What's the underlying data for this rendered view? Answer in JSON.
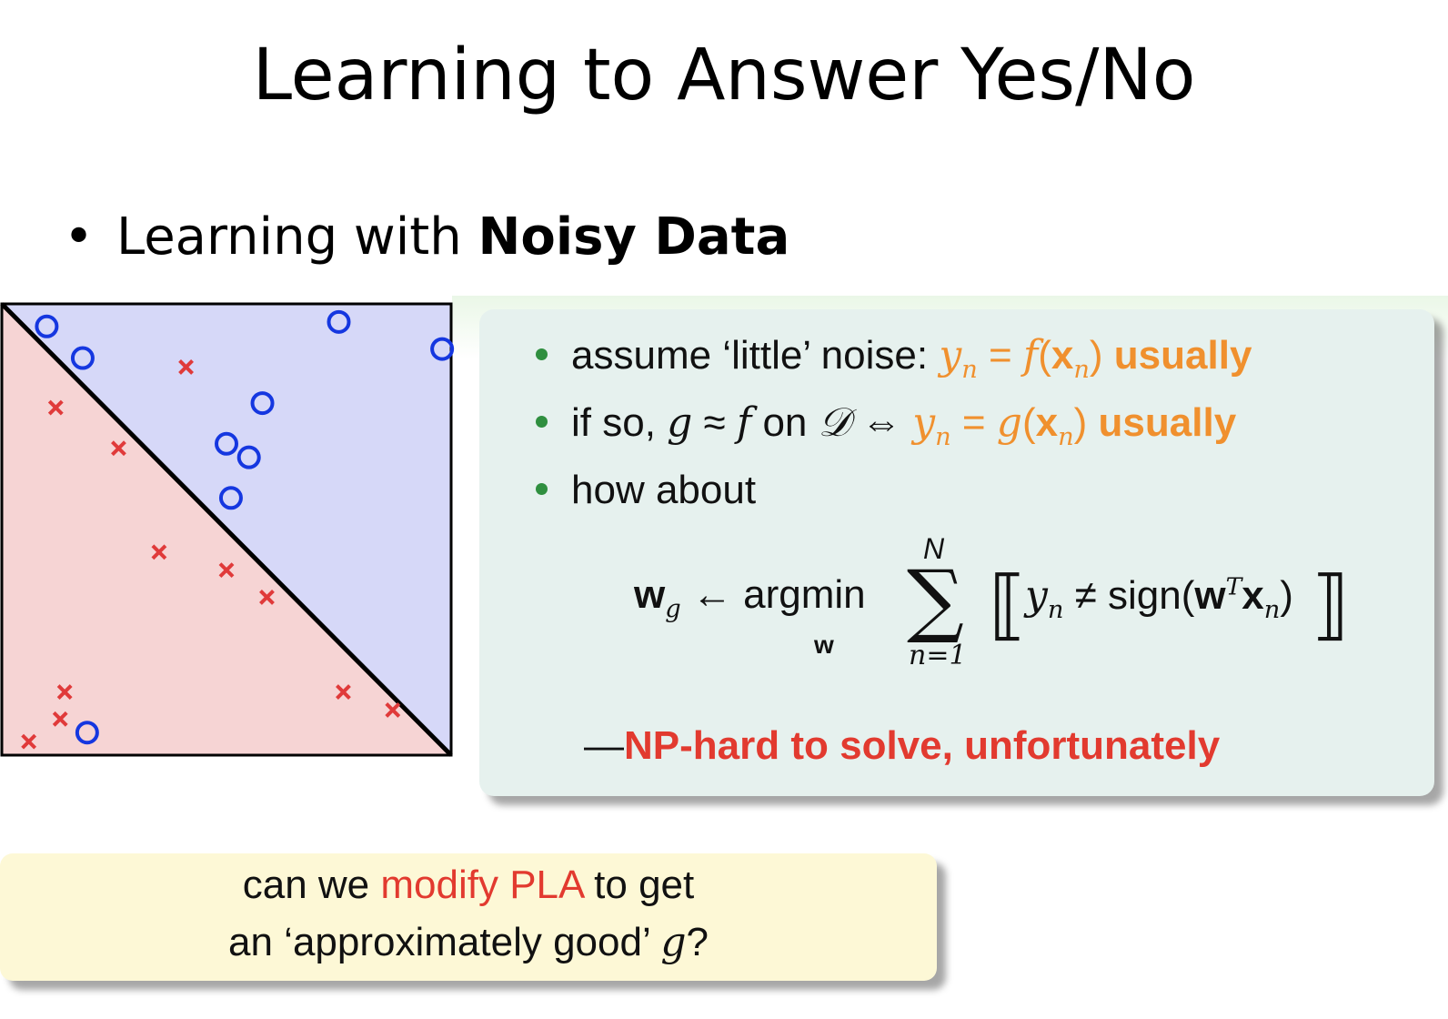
{
  "slide": {
    "title": "Learning to Answer Yes/No",
    "bullet_prefix": "Learning with ",
    "bullet_bold": "Noisy Data"
  },
  "plot": {
    "colors": {
      "upper_region": "#d6d8f8",
      "lower_region": "#f6d4d4",
      "circle": "#1537e0",
      "cross": "#e03a3a",
      "line": "#000000"
    },
    "circles": [
      [
        0.1,
        0.95
      ],
      [
        0.18,
        0.88
      ],
      [
        0.75,
        0.96
      ],
      [
        0.98,
        0.9
      ],
      [
        0.58,
        0.78
      ],
      [
        0.5,
        0.69
      ],
      [
        0.55,
        0.66
      ],
      [
        0.51,
        0.57
      ],
      [
        0.19,
        0.05
      ]
    ],
    "crosses": [
      [
        0.41,
        0.86
      ],
      [
        0.12,
        0.77
      ],
      [
        0.26,
        0.68
      ],
      [
        0.35,
        0.45
      ],
      [
        0.5,
        0.41
      ],
      [
        0.59,
        0.35
      ],
      [
        0.14,
        0.14
      ],
      [
        0.13,
        0.08
      ],
      [
        0.06,
        0.03
      ],
      [
        0.76,
        0.14
      ],
      [
        0.87,
        0.1
      ]
    ]
  },
  "green_box": {
    "colors": {
      "bullet_dot": "#2f8f3f",
      "accent": "#f0902e",
      "alert": "#e23a2f"
    },
    "b1_text": "assume ‘little’ noise: ",
    "b1_yn": "y",
    "b1_n": "n",
    "b1_eq": " = ",
    "b1_f": "f",
    "b1_x": "x",
    "b1_open": "(",
    "b1_close": ")",
    "b1_usually": "usually",
    "b2_text": "if so, ",
    "b2_g": "g",
    "b2_approx": " ≈ ",
    "b2_f": "f",
    "b2_on": " on ",
    "b2_D": "𝒟",
    "b2_iff": " ⇔ ",
    "b2_y": "y",
    "b2_n": "n",
    "b2_eq": " = ",
    "b2_g2": "g",
    "b2_x": "x",
    "b2_usually": "usually",
    "b3_text": "how about",
    "formula": {
      "w": "w",
      "g": "g",
      "arrow": " ← argmin",
      "argmin_sub": "w",
      "sum_top": "N",
      "sigma": "∑",
      "sum_bottom": "n=1",
      "lbrack": "⟦",
      "rbrack": "⟧",
      "y": "y",
      "n": "n",
      "neq": " ≠ sign(",
      "wT": "w",
      "T": "T",
      "x": "x",
      "xn": "n",
      "close": ")"
    },
    "np_dash": "—",
    "np_text": "NP-hard to solve, unfortunately"
  },
  "yellow_box": {
    "l1_pre": "can we ",
    "l1_red": "modify PLA",
    "l1_post": " to get",
    "l2_pre": "an ‘approximately good’ ",
    "l2_g": "g",
    "l2_post": "?"
  }
}
